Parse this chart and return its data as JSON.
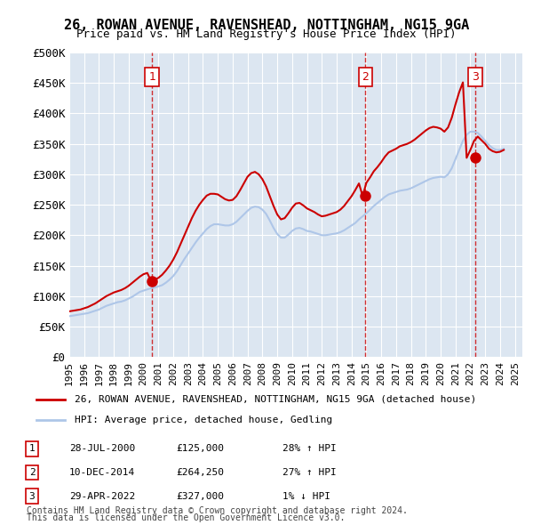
{
  "title": "26, ROWAN AVENUE, RAVENSHEAD, NOTTINGHAM, NG15 9GA",
  "subtitle": "Price paid vs. HM Land Registry's House Price Index (HPI)",
  "ylabel": "",
  "background_color": "#dce6f1",
  "plot_bg_color": "#dce6f1",
  "ylim": [
    0,
    500000
  ],
  "yticks": [
    0,
    50000,
    100000,
    150000,
    200000,
    250000,
    300000,
    350000,
    400000,
    450000,
    500000
  ],
  "ytick_labels": [
    "£0",
    "£50K",
    "£100K",
    "£150K",
    "£200K",
    "£250K",
    "£300K",
    "£350K",
    "£400K",
    "£450K",
    "£500K"
  ],
  "sales": [
    {
      "date_num": 2000.57,
      "price": 125000,
      "label": "1",
      "date_str": "28-JUL-2000",
      "pct": "28% ↑ HPI"
    },
    {
      "date_num": 2014.94,
      "price": 264250,
      "label": "2",
      "date_str": "10-DEC-2014",
      "pct": "27% ↑ HPI"
    },
    {
      "date_num": 2022.33,
      "price": 327000,
      "label": "3",
      "date_str": "29-APR-2022",
      "pct": "1% ↓ HPI"
    }
  ],
  "hpi_line_color": "#aec6e8",
  "price_line_color": "#cc0000",
  "sale_marker_color": "#cc0000",
  "vline_color": "#cc0000",
  "legend_label_red": "26, ROWAN AVENUE, RAVENSHEAD, NOTTINGHAM, NG15 9GA (detached house)",
  "legend_label_blue": "HPI: Average price, detached house, Gedling",
  "footer1": "Contains HM Land Registry data © Crown copyright and database right 2024.",
  "footer2": "This data is licensed under the Open Government Licence v3.0.",
  "hpi_data": {
    "years": [
      1995.0,
      1995.25,
      1995.5,
      1995.75,
      1996.0,
      1996.25,
      1996.5,
      1996.75,
      1997.0,
      1997.25,
      1997.5,
      1997.75,
      1998.0,
      1998.25,
      1998.5,
      1998.75,
      1999.0,
      1999.25,
      1999.5,
      1999.75,
      2000.0,
      2000.25,
      2000.5,
      2000.75,
      2001.0,
      2001.25,
      2001.5,
      2001.75,
      2002.0,
      2002.25,
      2002.5,
      2002.75,
      2003.0,
      2003.25,
      2003.5,
      2003.75,
      2004.0,
      2004.25,
      2004.5,
      2004.75,
      2005.0,
      2005.25,
      2005.5,
      2005.75,
      2006.0,
      2006.25,
      2006.5,
      2006.75,
      2007.0,
      2007.25,
      2007.5,
      2007.75,
      2008.0,
      2008.25,
      2008.5,
      2008.75,
      2009.0,
      2009.25,
      2009.5,
      2009.75,
      2010.0,
      2010.25,
      2010.5,
      2010.75,
      2011.0,
      2011.25,
      2011.5,
      2011.75,
      2012.0,
      2012.25,
      2012.5,
      2012.75,
      2013.0,
      2013.25,
      2013.5,
      2013.75,
      2014.0,
      2014.25,
      2014.5,
      2014.75,
      2015.0,
      2015.25,
      2015.5,
      2015.75,
      2016.0,
      2016.25,
      2016.5,
      2016.75,
      2017.0,
      2017.25,
      2017.5,
      2017.75,
      2018.0,
      2018.25,
      2018.5,
      2018.75,
      2019.0,
      2019.25,
      2019.5,
      2019.75,
      2020.0,
      2020.25,
      2020.5,
      2020.75,
      2021.0,
      2021.25,
      2021.5,
      2021.75,
      2022.0,
      2022.25,
      2022.5,
      2022.75,
      2023.0,
      2023.25,
      2023.5,
      2023.75,
      2024.0,
      2024.25
    ],
    "values": [
      67000,
      68000,
      69000,
      70000,
      71000,
      72000,
      74000,
      76000,
      78000,
      81000,
      84000,
      86000,
      88000,
      90000,
      91000,
      93000,
      96000,
      99000,
      103000,
      107000,
      109000,
      111000,
      113000,
      114000,
      116000,
      118000,
      122000,
      127000,
      133000,
      141000,
      151000,
      161000,
      170000,
      179000,
      188000,
      196000,
      203000,
      210000,
      215000,
      218000,
      218000,
      217000,
      216000,
      216000,
      218000,
      222000,
      228000,
      234000,
      240000,
      245000,
      247000,
      246000,
      242000,
      235000,
      224000,
      212000,
      202000,
      196000,
      196000,
      201000,
      207000,
      211000,
      212000,
      210000,
      207000,
      206000,
      204000,
      202000,
      200000,
      200000,
      201000,
      202000,
      203000,
      205000,
      208000,
      212000,
      216000,
      220000,
      226000,
      231000,
      236000,
      242000,
      248000,
      253000,
      258000,
      263000,
      267000,
      269000,
      271000,
      273000,
      274000,
      275000,
      277000,
      280000,
      283000,
      286000,
      289000,
      292000,
      294000,
      295000,
      296000,
      295000,
      300000,
      310000,
      325000,
      340000,
      355000,
      365000,
      370000,
      370000,
      368000,
      362000,
      355000,
      348000,
      343000,
      340000,
      340000,
      342000
    ]
  },
  "price_data": {
    "years": [
      1995.0,
      1995.25,
      1995.5,
      1995.75,
      1996.0,
      1996.25,
      1996.5,
      1996.75,
      1997.0,
      1997.25,
      1997.5,
      1997.75,
      1998.0,
      1998.25,
      1998.5,
      1998.75,
      1999.0,
      1999.25,
      1999.5,
      1999.75,
      2000.0,
      2000.25,
      2000.5,
      2000.75,
      2001.0,
      2001.25,
      2001.5,
      2001.75,
      2002.0,
      2002.25,
      2002.5,
      2002.75,
      2003.0,
      2003.25,
      2003.5,
      2003.75,
      2004.0,
      2004.25,
      2004.5,
      2004.75,
      2005.0,
      2005.25,
      2005.5,
      2005.75,
      2006.0,
      2006.25,
      2006.5,
      2006.75,
      2007.0,
      2007.25,
      2007.5,
      2007.75,
      2008.0,
      2008.25,
      2008.5,
      2008.75,
      2009.0,
      2009.25,
      2009.5,
      2009.75,
      2010.0,
      2010.25,
      2010.5,
      2010.75,
      2011.0,
      2011.25,
      2011.5,
      2011.75,
      2012.0,
      2012.25,
      2012.5,
      2012.75,
      2013.0,
      2013.25,
      2013.5,
      2013.75,
      2014.0,
      2014.25,
      2014.5,
      2014.75,
      2015.0,
      2015.25,
      2015.5,
      2015.75,
      2016.0,
      2016.25,
      2016.5,
      2016.75,
      2017.0,
      2017.25,
      2017.5,
      2017.75,
      2018.0,
      2018.25,
      2018.5,
      2018.75,
      2019.0,
      2019.25,
      2019.5,
      2019.75,
      2020.0,
      2020.25,
      2020.5,
      2020.75,
      2021.0,
      2021.25,
      2021.5,
      2021.75,
      2022.0,
      2022.25,
      2022.5,
      2022.75,
      2023.0,
      2023.25,
      2023.5,
      2023.75,
      2024.0,
      2024.25
    ],
    "values": [
      75000,
      76000,
      77000,
      78000,
      80000,
      82000,
      85000,
      88000,
      92000,
      96000,
      100000,
      103000,
      106000,
      108000,
      110000,
      113000,
      117000,
      122000,
      127000,
      132000,
      136000,
      138000,
      125000,
      127000,
      130000,
      135000,
      142000,
      150000,
      160000,
      172000,
      186000,
      200000,
      214000,
      228000,
      240000,
      250000,
      258000,
      265000,
      268000,
      268000,
      267000,
      263000,
      259000,
      257000,
      258000,
      264000,
      274000,
      285000,
      296000,
      302000,
      304000,
      300000,
      292000,
      280000,
      264000,
      248000,
      234000,
      226000,
      228000,
      236000,
      245000,
      252000,
      253000,
      249000,
      244000,
      241000,
      238000,
      234000,
      231000,
      232000,
      234000,
      236000,
      238000,
      242000,
      248000,
      256000,
      264000,
      274000,
      285000,
      264250,
      286000,
      295000,
      305000,
      312000,
      320000,
      329000,
      336000,
      339000,
      342000,
      346000,
      348000,
      350000,
      353000,
      357000,
      362000,
      367000,
      372000,
      376000,
      378000,
      377000,
      375000,
      370000,
      377000,
      393000,
      415000,
      435000,
      451000,
      327000,
      340000,
      355000,
      362000,
      356000,
      350000,
      342000,
      338000,
      336000,
      337000,
      340000
    ]
  },
  "xmin": 1995.0,
  "xmax": 2025.5,
  "xtick_years": [
    1995,
    1996,
    1997,
    1998,
    1999,
    2000,
    2001,
    2002,
    2003,
    2004,
    2005,
    2006,
    2007,
    2008,
    2009,
    2010,
    2011,
    2012,
    2013,
    2014,
    2015,
    2016,
    2017,
    2018,
    2019,
    2020,
    2021,
    2022,
    2023,
    2024,
    2025
  ]
}
